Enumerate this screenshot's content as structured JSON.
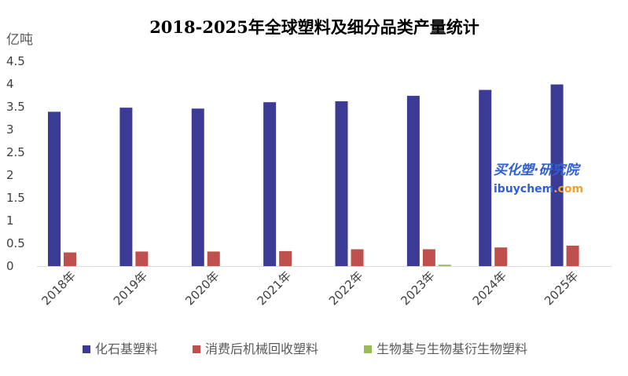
{
  "chart_data": {
    "type": "bar",
    "title": "2018-2025年全球塑料及细分品类产量统计",
    "ylabel": "亿吨",
    "categories": [
      "2018年",
      "2019年",
      "2020年",
      "2021年",
      "2022年",
      "2023年",
      "2024年",
      "2025年"
    ],
    "ylim": [
      0,
      4.5
    ],
    "yticks": [
      "0",
      "0.5",
      "1",
      "1.5",
      "2",
      "2.5",
      "3",
      "3.5",
      "4",
      "4.5"
    ],
    "grid": false,
    "legend_position": "bottom",
    "series": [
      {
        "name": "化石基塑料",
        "color": "#3b3b96",
        "values": [
          3.39,
          3.48,
          3.46,
          3.6,
          3.62,
          3.74,
          3.87,
          3.99
        ]
      },
      {
        "name": "消费后机械回收塑料",
        "color": "#c0504d",
        "values": [
          0.3,
          0.32,
          0.32,
          0.33,
          0.37,
          0.37,
          0.41,
          0.45
        ]
      },
      {
        "name": "生物基与生物基衍生物塑料",
        "color": "#9bbb59",
        "values": [
          0.0,
          0.0,
          0.0,
          0.0,
          0.0,
          0.03,
          0.0,
          0.0
        ]
      }
    ]
  },
  "watermark": {
    "line1": "买化塑·研究院",
    "line2_a": "ibuychem",
    "line2_b": ".com"
  }
}
